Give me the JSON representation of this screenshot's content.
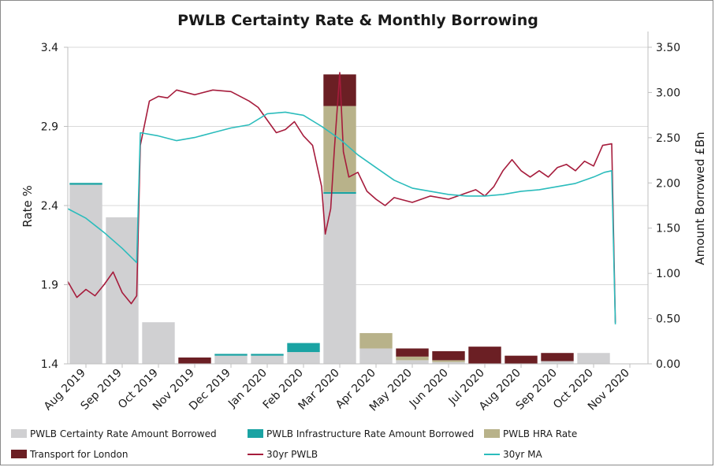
{
  "chart_data": {
    "type": "bar",
    "title": "PWLB Certainty Rate & Monthly Borrowing",
    "ylabel": "Rate %",
    "y2label": "Amount Borrowed £Bn",
    "ylim": [
      1.4,
      3.4
    ],
    "y_ticks": [
      "1.4",
      "1.9",
      "2.4",
      "2.9",
      "3.4"
    ],
    "y2lim": [
      0,
      3.5
    ],
    "y2_ticks": [
      "0.00",
      "0.50",
      "1.00",
      "1.50",
      "2.00",
      "2.50",
      "3.00",
      "3.50"
    ],
    "categories": [
      "Aug 2019",
      "Sep 2019",
      "Oct 2019",
      "Nov 2019",
      "Dec 2019",
      "Jan 2020",
      "Feb 2020",
      "Mar 2020",
      "Apr 2020",
      "May 2020",
      "Jun 2020",
      "Jul 2020",
      "Aug 2020",
      "Sep 2020",
      "Oct 2020",
      "Nov 2020"
    ],
    "grid": true,
    "legend_position": "bottom",
    "bar_series": [
      {
        "name": "PWLB Certainty Rate Amount Borrowed",
        "color": "#d0d0d2",
        "values": [
          1.98,
          1.62,
          0.46,
          0.0,
          0.09,
          0.09,
          0.13,
          1.88,
          0.17,
          0.04,
          0.02,
          0.0,
          0.0,
          0.03,
          0.12,
          0.0
        ]
      },
      {
        "name": "PWLB Infrastructure Rate Amount Borrowed",
        "color": "#1aa3a3",
        "values": [
          0.02,
          0.0,
          0.0,
          0.0,
          0.02,
          0.02,
          0.1,
          0.02,
          0.0,
          0.0,
          0.0,
          0.0,
          0.0,
          0.0,
          0.0,
          0.0
        ]
      },
      {
        "name": "PWLB HRA Rate",
        "color": "#b8b28a",
        "values": [
          0.0,
          0.0,
          0.0,
          0.0,
          0.0,
          0.0,
          0.0,
          0.95,
          0.17,
          0.04,
          0.02,
          0.0,
          0.0,
          0.0,
          0.0,
          0.0
        ]
      },
      {
        "name": "Transport for London",
        "color": "#6b1f24",
        "values": [
          0.0,
          0.0,
          0.0,
          0.07,
          0.0,
          0.0,
          0.0,
          0.35,
          0.0,
          0.09,
          0.1,
          0.19,
          0.09,
          0.09,
          0.0,
          0.0
        ]
      }
    ],
    "line_series": [
      {
        "name": "30yr PWLB",
        "color": "#a61c3c",
        "x": [
          0,
          0.25,
          0.5,
          0.75,
          1.0,
          1.25,
          1.5,
          1.75,
          1.9,
          2.0,
          2.25,
          2.5,
          2.75,
          3.0,
          3.5,
          4.0,
          4.5,
          5.0,
          5.25,
          5.5,
          5.75,
          6.0,
          6.25,
          6.5,
          6.75,
          7.0,
          7.1,
          7.25,
          7.35,
          7.5,
          7.6,
          7.75,
          8.0,
          8.25,
          8.5,
          8.75,
          9.0,
          9.5,
          10.0,
          10.5,
          11.0,
          11.25,
          11.5,
          11.75,
          12.0,
          12.25,
          12.5,
          12.75,
          13.0,
          13.25,
          13.5,
          13.75,
          14.0,
          14.25,
          14.5,
          14.75,
          15.0,
          15.1
        ],
        "y": [
          1.92,
          1.82,
          1.87,
          1.83,
          1.9,
          1.98,
          1.85,
          1.78,
          1.83,
          2.78,
          3.06,
          3.09,
          3.08,
          3.13,
          3.1,
          3.13,
          3.12,
          3.06,
          3.02,
          2.94,
          2.86,
          2.88,
          2.93,
          2.84,
          2.78,
          2.52,
          2.22,
          2.38,
          2.75,
          3.24,
          2.74,
          2.58,
          2.61,
          2.49,
          2.44,
          2.4,
          2.45,
          2.42,
          2.46,
          2.44,
          2.48,
          2.5,
          2.46,
          2.52,
          2.62,
          2.69,
          2.62,
          2.58,
          2.62,
          2.58,
          2.64,
          2.66,
          2.62,
          2.68,
          2.65,
          2.78,
          2.79,
          1.66
        ]
      },
      {
        "name": "30yr MA",
        "color": "#2bbcbc",
        "x": [
          0,
          0.5,
          1.0,
          1.5,
          1.9,
          2.0,
          2.5,
          3.0,
          3.5,
          4.0,
          4.5,
          5.0,
          5.5,
          6.0,
          6.5,
          7.0,
          7.5,
          8.0,
          8.5,
          9.0,
          9.5,
          10.0,
          10.5,
          11.0,
          11.5,
          12.0,
          12.5,
          13.0,
          13.5,
          14.0,
          14.5,
          14.8,
          15.0,
          15.1
        ],
        "y": [
          2.38,
          2.32,
          2.23,
          2.13,
          2.04,
          2.86,
          2.84,
          2.81,
          2.83,
          2.86,
          2.89,
          2.91,
          2.98,
          2.99,
          2.97,
          2.9,
          2.82,
          2.72,
          2.64,
          2.56,
          2.51,
          2.49,
          2.47,
          2.46,
          2.46,
          2.47,
          2.49,
          2.5,
          2.52,
          2.54,
          2.58,
          2.61,
          2.62,
          1.65
        ]
      }
    ]
  }
}
